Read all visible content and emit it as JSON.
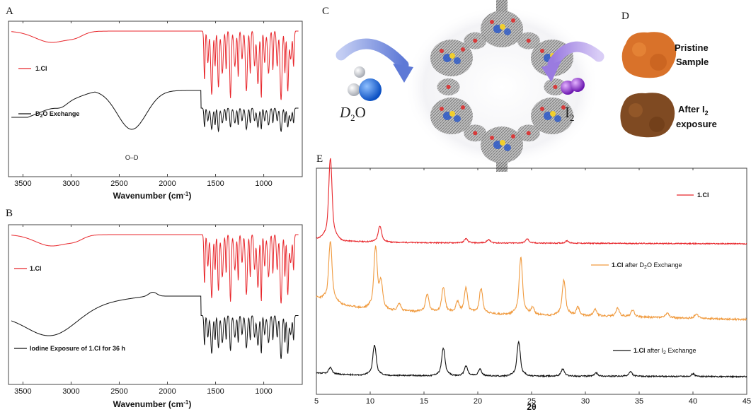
{
  "panels": {
    "A": "A",
    "B": "B",
    "C": "C",
    "D": "D",
    "E": "E"
  },
  "chart_data": [
    {
      "id": "A",
      "type": "line",
      "xlabel": "Wavenumber (cm",
      "xlabel_sup": "-1",
      "xlabel_end": ")",
      "xlim": [
        3650,
        600
      ],
      "xticks": [
        3500,
        3000,
        2500,
        2000,
        1500,
        1000
      ],
      "grid": false,
      "annotations": [
        {
          "text": "O–D",
          "x": 2370
        }
      ],
      "series": [
        {
          "name": "1.Cl",
          "color": "#e8262b",
          "legend": "1.Cl"
        },
        {
          "name": "D2O Exchange",
          "color": "#111111",
          "legend_parts": [
            "D",
            "2",
            "O Exchange"
          ]
        }
      ]
    },
    {
      "id": "B",
      "type": "line",
      "xlabel": "Wavenumber (cm",
      "xlabel_sup": "-1",
      "xlabel_end": ")",
      "xlim": [
        3650,
        600
      ],
      "xticks": [
        3500,
        3000,
        2500,
        2000,
        1500,
        1000
      ],
      "grid": false,
      "series": [
        {
          "name": "1.Cl",
          "color": "#e8262b",
          "legend": "1.Cl"
        },
        {
          "name": "Iodine Exposure of 1.Cl for 36 h",
          "color": "#111111",
          "legend": "Iodine Exposure of 1.Cl for 36 h"
        }
      ]
    },
    {
      "id": "E",
      "type": "line",
      "xlabel": "2θ",
      "xlim": [
        5,
        45
      ],
      "xticks": [
        5,
        10,
        15,
        20,
        25,
        30,
        35,
        40,
        45
      ],
      "grid": false,
      "series": [
        {
          "name": "1.Cl",
          "color": "#e8262b",
          "legend_parts": [
            "1.Cl",
            "",
            ""
          ],
          "peaks": [
            [
              6.3,
              1.0
            ],
            [
              10.9,
              0.2
            ],
            [
              18.9,
              0.05
            ],
            [
              21.0,
              0.04
            ],
            [
              24.6,
              0.05
            ],
            [
              28.3,
              0.03
            ]
          ]
        },
        {
          "name": "1.Cl after D2O Exchange",
          "color": "#f09a3e",
          "legend_parts": [
            "1.Cl",
            " after D",
            "2",
            "O Exchange"
          ],
          "peaks": [
            [
              6.3,
              0.85
            ],
            [
              10.5,
              0.85
            ],
            [
              11.0,
              0.35
            ],
            [
              12.7,
              0.1
            ],
            [
              15.3,
              0.25
            ],
            [
              16.8,
              0.35
            ],
            [
              18.1,
              0.15
            ],
            [
              18.9,
              0.35
            ],
            [
              20.3,
              0.35
            ],
            [
              24.0,
              0.8
            ],
            [
              25.1,
              0.1
            ],
            [
              28.0,
              0.5
            ],
            [
              29.3,
              0.12
            ],
            [
              30.9,
              0.1
            ],
            [
              33.0,
              0.12
            ],
            [
              34.4,
              0.1
            ],
            [
              37.6,
              0.06
            ],
            [
              40.3,
              0.06
            ]
          ]
        },
        {
          "name": "1.Cl after I2 Exchange",
          "color": "#111111",
          "legend_parts": [
            "1.Cl",
            " after I",
            "2",
            " Exchange"
          ],
          "peaks": [
            [
              6.3,
              0.12
            ],
            [
              10.4,
              0.55
            ],
            [
              16.8,
              0.5
            ],
            [
              18.9,
              0.18
            ],
            [
              20.2,
              0.12
            ],
            [
              23.8,
              0.62
            ],
            [
              27.9,
              0.13
            ],
            [
              31.0,
              0.06
            ],
            [
              34.2,
              0.08
            ],
            [
              40.0,
              0.05
            ]
          ]
        }
      ]
    }
  ],
  "illustration": {
    "left_label_main": "D",
    "left_label_sub": "2",
    "left_label_end": "O",
    "right_label_main": "I",
    "right_label_sub": "2"
  },
  "samples": {
    "pristine_line1": "Pristine",
    "pristine_line2": "Sample",
    "after_line1": "After I",
    "after_sub": "2",
    "after_line2": "exposure"
  },
  "colors": {
    "red": "#e8262b",
    "orange": "#f09a3e",
    "black": "#111111",
    "arrow_blue": "#6f87d8",
    "arrow_purple": "#a48be0",
    "iodine": "#8a2fc9",
    "deuterium_o": "#2067d8"
  }
}
